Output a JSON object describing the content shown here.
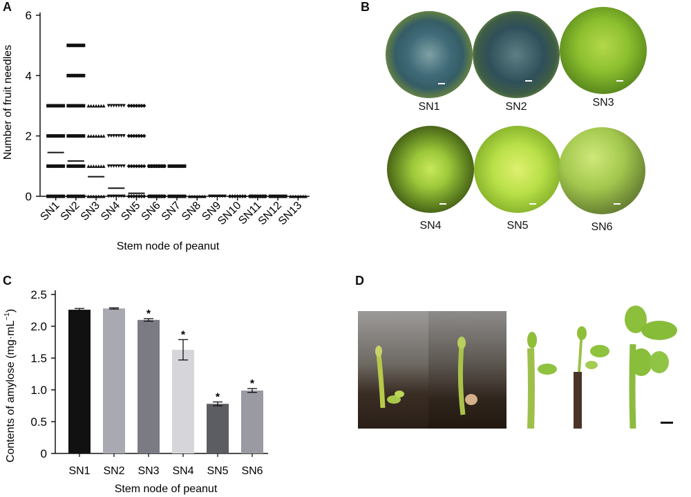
{
  "panel_a": {
    "letter": "A",
    "ylabel": "Number of fruit needles",
    "xlabel": "Stem node of peanut",
    "yticks": [
      "0",
      "2",
      "4",
      "6"
    ],
    "categories": [
      "SN1",
      "SN2",
      "SN3",
      "SN4",
      "SN5",
      "SN6",
      "SN7",
      "SN8",
      "SN9",
      "SN10",
      "SN11",
      "SN12",
      "SN13"
    ]
  },
  "panel_b": {
    "letter": "B",
    "images": [
      {
        "label": "SN1"
      },
      {
        "label": "SN2"
      },
      {
        "label": "SN3"
      },
      {
        "label": "SN4"
      },
      {
        "label": "SN5"
      },
      {
        "label": "SN6"
      }
    ]
  },
  "panel_c": {
    "letter": "C",
    "ylabel": "Contents of amylose (mg·mL",
    "ylabel_sup": "−1",
    "ylabel_close": ")",
    "xlabel": "Stem node of peanut",
    "yticks": [
      "0",
      "0.5",
      "1.0",
      "1.5",
      "2.0",
      "2.5"
    ],
    "categories": [
      "SN1",
      "SN2",
      "SN3",
      "SN4",
      "SN5",
      "SN6"
    ],
    "significance": "*"
  },
  "panel_d": {
    "letter": "D"
  },
  "colors": {
    "bar_sn1": "#111111",
    "bar_sn2": "#a9a9b2",
    "bar_sn3": "#7b7b84",
    "bar_sn4": "#d6d6da",
    "bar_sn5": "#5c5c63",
    "bar_sn6": "#9a9aa3"
  },
  "chart_data": [
    {
      "type": "scatter",
      "title": "",
      "xlabel": "Stem node of peanut",
      "ylabel": "Number of fruit needles",
      "ylim": [
        0,
        6
      ],
      "categories": [
        "SN1",
        "SN2",
        "SN3",
        "SN4",
        "SN5",
        "SN6",
        "SN7",
        "SN8",
        "SN9",
        "SN10",
        "SN11",
        "SN12",
        "SN13"
      ],
      "markers": [
        "square",
        "square",
        "triangle-up",
        "triangle-down",
        "diamond",
        "circle",
        "square",
        "triangle-up",
        "triangle-down",
        "diamond",
        "circle",
        "square",
        "triangle-up"
      ],
      "observed_values": [
        [
          0,
          1,
          2,
          3
        ],
        [
          0,
          1,
          2,
          3,
          4,
          5
        ],
        [
          0,
          1,
          2,
          3
        ],
        [
          0,
          1,
          2,
          3
        ],
        [
          0,
          1,
          2,
          3
        ],
        [
          0,
          1
        ],
        [
          0,
          1
        ],
        [
          0
        ],
        [
          0
        ],
        [
          0
        ],
        [
          0
        ],
        [
          0
        ],
        [
          0
        ]
      ],
      "means": [
        1.45,
        1.17,
        0.65,
        0.27,
        0.1,
        0.03,
        0.03,
        0,
        0,
        0,
        0,
        0,
        0
      ],
      "grid": false
    },
    {
      "type": "bar",
      "title": "",
      "xlabel": "Stem node of peanut",
      "ylabel": "Contents of amylose (mg·mL−1)",
      "ylim": [
        0,
        2.5
      ],
      "categories": [
        "SN1",
        "SN2",
        "SN3",
        "SN4",
        "SN5",
        "SN6"
      ],
      "values": [
        2.26,
        2.28,
        2.1,
        1.63,
        0.78,
        0.99
      ],
      "errors": [
        0.02,
        0.01,
        0.02,
        0.16,
        0.03,
        0.03
      ],
      "significant": [
        false,
        false,
        true,
        true,
        true,
        true
      ],
      "grid": false
    }
  ]
}
